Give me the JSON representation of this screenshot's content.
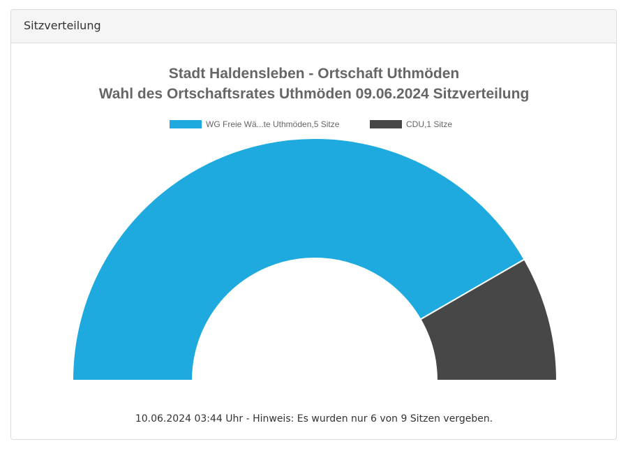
{
  "panel": {
    "heading": "Sitzverteilung"
  },
  "footnote": "10.06.2024 03:44 Uhr - Hinweis: Es wurden nur 6 von 9 Sitzen vergeben.",
  "chart_data": {
    "type": "pie",
    "subtype": "half-donut",
    "title": [
      "Stadt Haldensleben - Ortschaft Uthmöden",
      "Wahl des Ortschaftsrates Uthmöden 09.06.2024 Sitzverteilung"
    ],
    "legend_position": "top",
    "series": [
      {
        "name": "WG Freie Wä...te Uthmöden,5 Sitze",
        "value": 5,
        "color": "#1eaade"
      },
      {
        "name": "CDU,1 Sitze",
        "value": 1,
        "color": "#474747"
      }
    ]
  }
}
